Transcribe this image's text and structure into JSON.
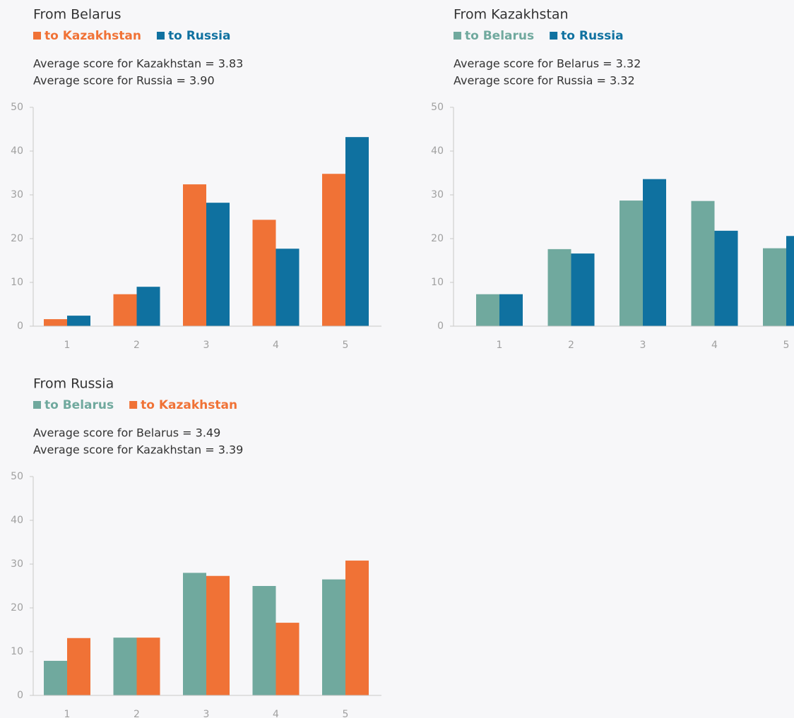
{
  "chart_data": [
    {
      "type": "bar",
      "title": "From Belarus",
      "annotations": [
        "Average score for Kazakhstan = 3.83",
        "Average score for Russia = 3.90"
      ],
      "categories": [
        "1",
        "2",
        "3",
        "4",
        "5"
      ],
      "series": [
        {
          "name": "to Kazakhstan",
          "color": "#f07236",
          "values": [
            1.6,
            7.3,
            32.4,
            24.3,
            34.8
          ]
        },
        {
          "name": "to Russia",
          "color": "#0f71a0",
          "values": [
            2.4,
            9.0,
            28.2,
            17.7,
            43.2
          ]
        }
      ],
      "ylim": [
        0,
        50
      ],
      "yticks": [
        0,
        10,
        20,
        30,
        40,
        50
      ]
    },
    {
      "type": "bar",
      "title": "From Kazakhstan",
      "annotations": [
        "Average score for Belarus = 3.32",
        "Average score for Russia = 3.32"
      ],
      "categories": [
        "1",
        "2",
        "3",
        "4",
        "5"
      ],
      "series": [
        {
          "name": "to Belarus",
          "color": "#70a99e",
          "values": [
            7.3,
            17.6,
            28.7,
            28.6,
            17.8
          ]
        },
        {
          "name": "to Russia",
          "color": "#0f71a0",
          "values": [
            7.3,
            16.6,
            33.6,
            21.8,
            20.6
          ]
        }
      ],
      "ylim": [
        0,
        50
      ],
      "yticks": [
        0,
        10,
        20,
        30,
        40,
        50
      ]
    },
    {
      "type": "bar",
      "title": "From Russia",
      "annotations": [
        "Average score for Belarus = 3.49",
        "Average score for Kazakhstan = 3.39"
      ],
      "categories": [
        "1",
        "2",
        "3",
        "4",
        "5"
      ],
      "series": [
        {
          "name": "to Belarus",
          "color": "#70a99e",
          "values": [
            7.9,
            13.2,
            28.0,
            25.0,
            26.5
          ]
        },
        {
          "name": "to Kazakhstan",
          "color": "#f07236",
          "values": [
            13.1,
            13.2,
            27.3,
            16.6,
            30.8
          ]
        }
      ],
      "ylim": [
        0,
        50
      ],
      "yticks": [
        0,
        10,
        20,
        30,
        40,
        50
      ]
    }
  ]
}
